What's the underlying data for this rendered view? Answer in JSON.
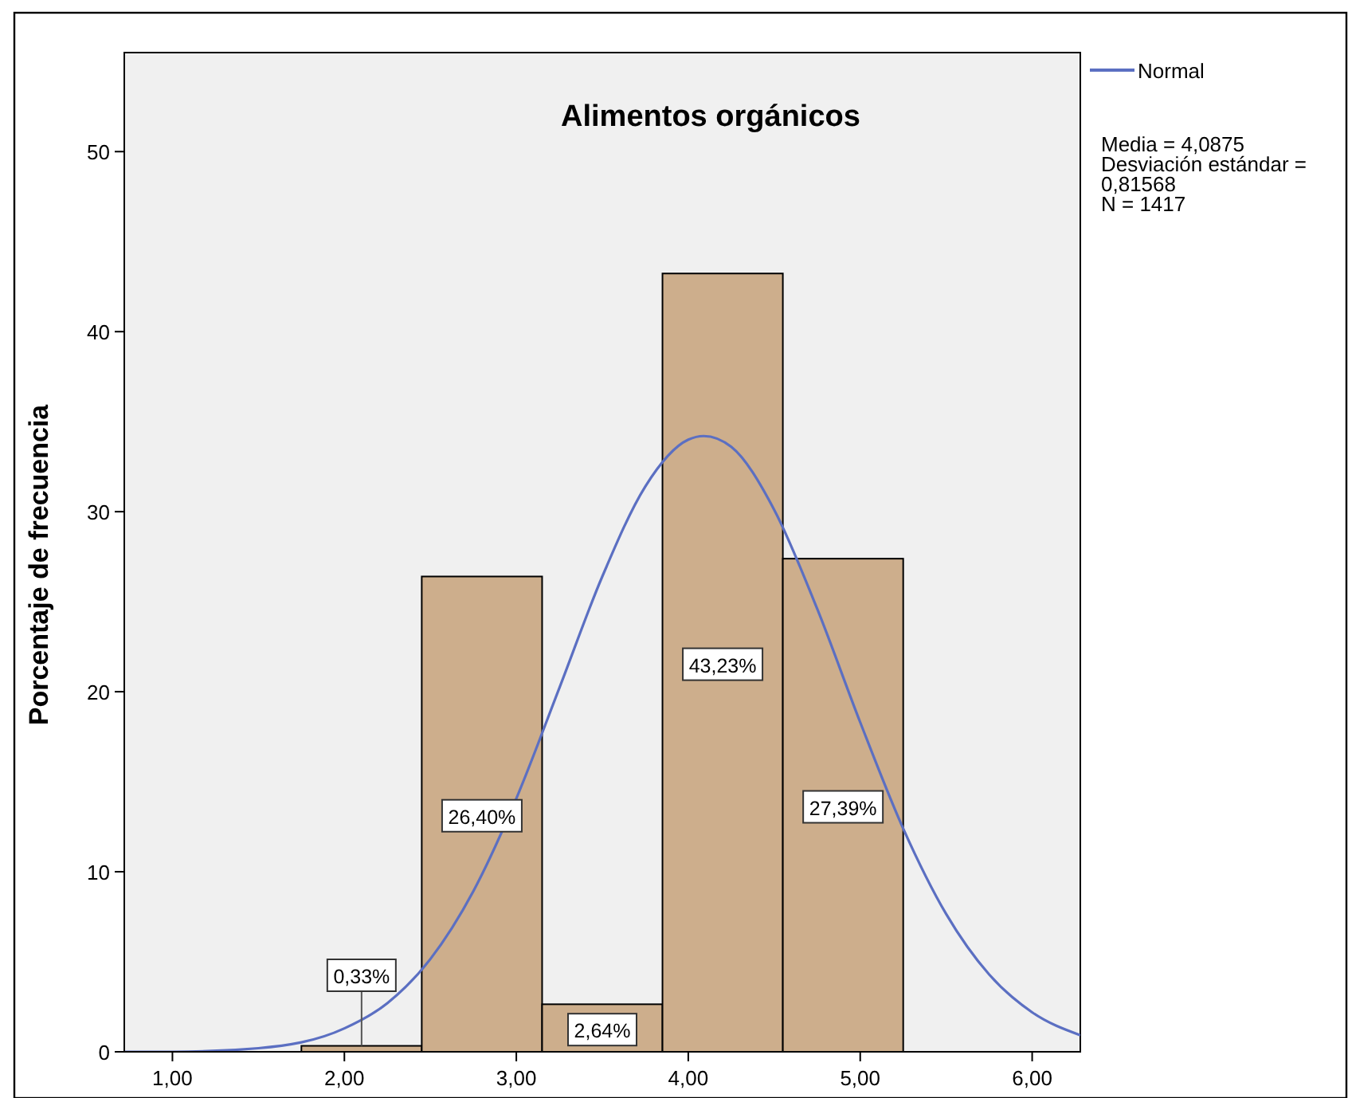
{
  "chart_data": {
    "type": "histogram",
    "title": "Alimentos orgánicos",
    "ylabel": "Porcentaje de frecuencia",
    "bins": [
      1.75,
      2.45,
      3.15,
      3.85,
      4.55,
      5.25
    ],
    "values": [
      0.33,
      26.4,
      2.64,
      43.23,
      27.39
    ],
    "value_labels": [
      "0,33%",
      "26,40%",
      "2,64%",
      "43,23%",
      "27,39%"
    ],
    "color": "#cdae8c",
    "series": [
      {
        "name": "Normal",
        "type": "line",
        "color": "#5b6fc2",
        "x": [
          0.72,
          1.0,
          1.5,
          2.0,
          2.25,
          2.5,
          2.75,
          3.0,
          3.25,
          3.5,
          3.75,
          4.0,
          4.09,
          4.25,
          4.5,
          4.75,
          5.0,
          5.25,
          5.5,
          5.75,
          6.0,
          6.28
        ],
        "values": [
          0.0,
          0.0,
          0.2,
          1.3,
          2.7,
          5.15,
          8.92,
          14.07,
          20.2,
          26.4,
          31.4,
          34.0,
          34.2,
          33.6,
          30.1,
          24.6,
          18.3,
          12.4,
          7.65,
          4.29,
          2.19,
          0.92
        ]
      }
    ],
    "xlim": [
      0.72,
      6.28
    ],
    "ylim": [
      0,
      55.5
    ],
    "xticks": [
      {
        "value": 1,
        "label": "1,00"
      },
      {
        "value": 2,
        "label": "2,00"
      },
      {
        "value": 3,
        "label": "3,00"
      },
      {
        "value": 4,
        "label": "4,00"
      },
      {
        "value": 5,
        "label": "5,00"
      },
      {
        "value": 6,
        "label": "6,00"
      }
    ],
    "yticks": [
      0,
      10,
      20,
      30,
      40,
      50
    ],
    "grid": false,
    "legend": "top right",
    "annotations": [
      "Media = 4,0875",
      "Desviación estándar = 0,81568",
      "N = 1417"
    ]
  }
}
